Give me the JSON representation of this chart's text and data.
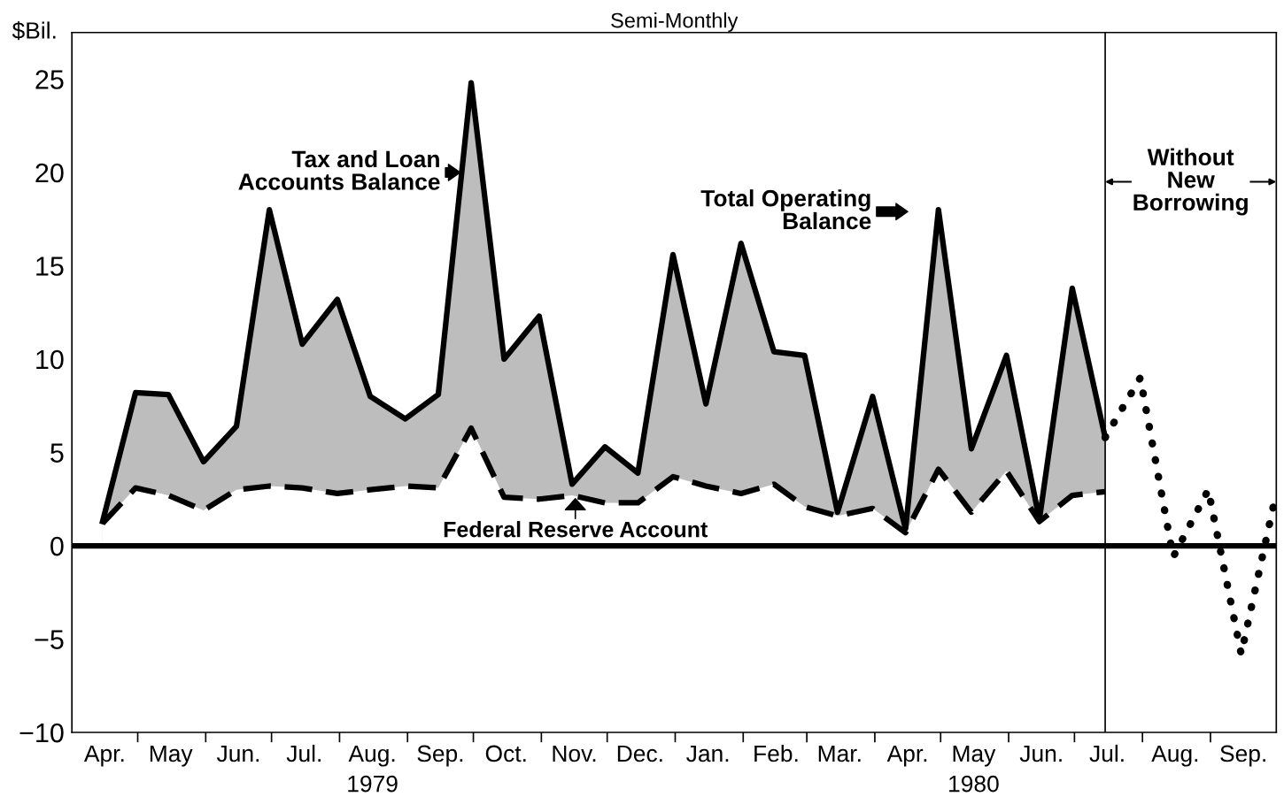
{
  "chart_data": {
    "type": "line",
    "title": "Semi-Monthly",
    "ylabel": "$Bil.",
    "x": [
      "1979-04-15",
      "1979-04-30",
      "1979-05-15",
      "1979-05-31",
      "1979-06-15",
      "1979-06-30",
      "1979-07-15",
      "1979-07-31",
      "1979-08-15",
      "1979-08-31",
      "1979-09-15",
      "1979-09-30",
      "1979-10-15",
      "1979-10-31",
      "1979-11-15",
      "1979-11-30",
      "1979-12-15",
      "1979-12-31",
      "1980-01-15",
      "1980-01-31",
      "1980-02-15",
      "1980-02-29",
      "1980-03-15",
      "1980-03-31",
      "1980-04-15",
      "1980-04-30",
      "1980-05-15",
      "1980-05-31",
      "1980-06-15",
      "1980-06-30",
      "1980-07-15"
    ],
    "series": [
      {
        "type": "area",
        "color": "#bdbdbd",
        "line_style": "solid",
        "values": [
          1.3,
          8.2,
          8.1,
          4.5,
          6.4,
          18.0,
          10.8,
          13.2,
          8.0,
          6.8,
          8.1,
          24.8,
          10.0,
          12.3,
          3.3,
          5.3,
          3.9,
          15.6,
          7.6,
          16.2,
          10.4,
          10.2,
          1.8,
          8.0,
          0.9,
          18.0,
          5.2,
          10.2,
          1.4,
          13.8,
          5.8
        ]
      },
      {
        "type": "area",
        "color": "#ffffff",
        "line_style": "dashed",
        "values": [
          1.2,
          3.1,
          2.7,
          1.9,
          3.0,
          3.2,
          3.1,
          2.8,
          3.0,
          3.2,
          3.1,
          6.3,
          2.6,
          2.5,
          2.7,
          2.3,
          2.3,
          3.7,
          3.2,
          2.8,
          3.3,
          2.1,
          1.6,
          2.0,
          0.7,
          4.1,
          1.8,
          4.0,
          1.3,
          2.7,
          2.9
        ]
      },
      {
        "color": "#000000",
        "line_style": "dotted",
        "x": [
          "1980-07-15",
          "1980-07-31",
          "1980-08-15",
          "1980-08-31",
          "1980-09-15",
          "1980-09-30"
        ],
        "values": [
          5.8,
          9.0,
          -0.6,
          3.0,
          -5.8,
          2.3
        ]
      }
    ],
    "xlim": [
      "1979-04-01",
      "1980-10-01"
    ],
    "xticks": [
      {
        "value": "1979-05-01",
        "label": null
      },
      {
        "value": "1979-06-01",
        "label": null
      },
      {
        "value": "1979-07-01",
        "label": null
      },
      {
        "value": "1979-08-01",
        "label": null
      },
      {
        "value": "1979-09-01",
        "label": null
      },
      {
        "value": "1979-10-01",
        "label": null
      },
      {
        "value": "1979-11-01",
        "label": null
      },
      {
        "value": "1979-12-01",
        "label": null
      },
      {
        "value": "1980-01-01",
        "label": null
      },
      {
        "value": "1980-02-01",
        "label": null
      },
      {
        "value": "1980-03-01",
        "label": null
      },
      {
        "value": "1980-04-01",
        "label": null
      },
      {
        "value": "1980-05-01",
        "label": null
      },
      {
        "value": "1980-06-01",
        "label": null
      },
      {
        "value": "1980-07-01",
        "label": null
      },
      {
        "value": "1980-08-01",
        "label": null
      },
      {
        "value": "1980-09-01",
        "label": null
      },
      {
        "value": "1979-04-16",
        "label": "Apr."
      },
      {
        "value": "1979-05-16",
        "label": "May"
      },
      {
        "value": "1979-06-16",
        "label": "Jun."
      },
      {
        "value": "1979-07-16",
        "label": "Jul."
      },
      {
        "value": "1979-08-16",
        "label": "Aug.\n1979"
      },
      {
        "value": "1979-09-16",
        "label": "Sep."
      },
      {
        "value": "1979-10-16",
        "label": "Oct."
      },
      {
        "value": "1979-11-16",
        "label": "Nov."
      },
      {
        "value": "1979-12-16",
        "label": "Dec."
      },
      {
        "value": "1980-01-16",
        "label": "Jan."
      },
      {
        "value": "1980-02-16",
        "label": "Feb."
      },
      {
        "value": "1980-03-16",
        "label": "Mar."
      },
      {
        "value": "1980-04-16",
        "label": "Apr."
      },
      {
        "value": "1980-05-16",
        "label": "May\n1980"
      },
      {
        "value": "1980-06-16",
        "label": "Jun."
      },
      {
        "value": "1980-07-16",
        "label": "Jul."
      },
      {
        "value": "1980-08-16",
        "label": "Aug."
      },
      {
        "value": "1980-09-16",
        "label": "Sep."
      }
    ],
    "ylim": [
      -10,
      27.5
    ],
    "yticks": [
      {
        "value": -10,
        "label": "−10"
      },
      {
        "value": -5,
        "label": "−5"
      },
      0,
      5,
      10,
      15,
      20,
      25
    ],
    "ref_lines": [
      {
        "axis": "y",
        "value": 0,
        "color": "#000000"
      },
      {
        "axis": "x",
        "value": "1980-07-15",
        "color": "#000000",
        "label": "Without\nNew\nBorrowing"
      }
    ],
    "annotations": [
      {
        "text": "Tax and Loan\nAccounts Balance",
        "x": "1979-09-25",
        "y": 20
      },
      "Total Operating\nBalance",
      "Federal Reserve Account"
    ],
    "grid": false
  }
}
